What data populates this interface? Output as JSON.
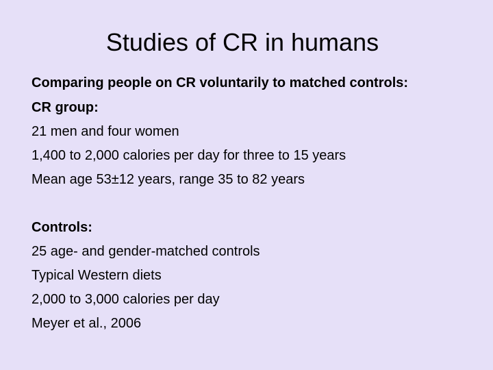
{
  "slide": {
    "title": "Studies of CR in humans",
    "intro": "Comparing people on CR voluntarily to matched controls:",
    "cr_group": {
      "heading": "CR group:",
      "items": [
        "21 men and four women",
        "1,400 to 2,000 calories per day for three to 15 years",
        "Mean age 53±12 years, range 35 to 82 years"
      ]
    },
    "controls": {
      "heading": "Controls:",
      "items": [
        "25 age- and gender-matched controls",
        "Typical Western diets",
        "2,000 to 3,000 calories per day"
      ]
    },
    "citation": "Meyer et al., 2006"
  }
}
